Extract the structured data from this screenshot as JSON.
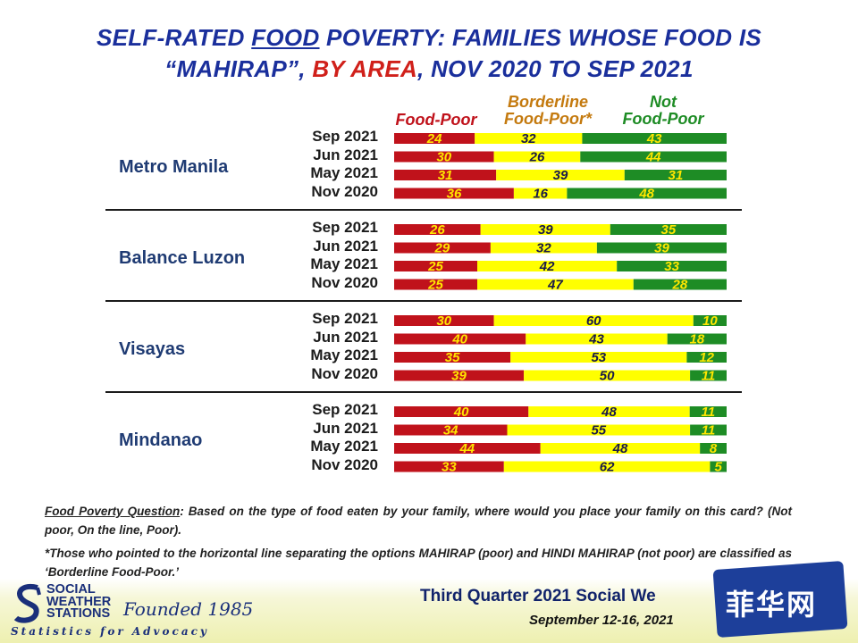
{
  "title": {
    "line1_a": "SELF-RATED ",
    "line1_b": "FOOD",
    "line1_c": " POVERTY: FAMILIES WHOSE FOOD IS",
    "line2_a": "“MAHIRAP”, ",
    "line2_b": "BY AREA",
    "line2_c": ", NOV 2020 TO SEP 2021"
  },
  "legend": {
    "food_poor": "Food-Poor",
    "borderline_1": "Borderline",
    "borderline_2": "Food-Poor*",
    "not_1": "Not",
    "not_2": "Food-Poor"
  },
  "colors": {
    "food_poor": "#c0121b",
    "borderline": "#ffff00",
    "not_food_poor": "#1e8c25",
    "title_blue": "#1a2f9c"
  },
  "chart_data": {
    "type": "bar",
    "orientation": "horizontal-stacked-100",
    "series_names": [
      "Food-Poor",
      "Borderline Food-Poor*",
      "Not Food-Poor"
    ],
    "groups": [
      {
        "area": "Metro Manila",
        "rows": [
          {
            "period": "Sep 2021",
            "values": [
              24,
              32,
              43
            ]
          },
          {
            "period": "Jun 2021",
            "values": [
              30,
              26,
              44
            ]
          },
          {
            "period": "May 2021",
            "values": [
              31,
              39,
              31
            ]
          },
          {
            "period": "Nov 2020",
            "values": [
              36,
              16,
              48
            ]
          }
        ]
      },
      {
        "area": "Balance Luzon",
        "rows": [
          {
            "period": "Sep 2021",
            "values": [
              26,
              39,
              35
            ]
          },
          {
            "period": "Jun 2021",
            "values": [
              29,
              32,
              39
            ]
          },
          {
            "period": "May 2021",
            "values": [
              25,
              42,
              33
            ]
          },
          {
            "period": "Nov 2020",
            "values": [
              25,
              47,
              28
            ]
          }
        ]
      },
      {
        "area": "Visayas",
        "rows": [
          {
            "period": "Sep 2021",
            "values": [
              30,
              60,
              10
            ]
          },
          {
            "period": "Jun 2021",
            "values": [
              40,
              43,
              18
            ]
          },
          {
            "period": "May 2021",
            "values": [
              35,
              53,
              12
            ]
          },
          {
            "period": "Nov 2020",
            "values": [
              39,
              50,
              11
            ]
          }
        ]
      },
      {
        "area": "Mindanao",
        "rows": [
          {
            "period": "Sep 2021",
            "values": [
              40,
              48,
              11
            ]
          },
          {
            "period": "Jun 2021",
            "values": [
              34,
              55,
              11
            ]
          },
          {
            "period": "May 2021",
            "values": [
              44,
              48,
              8
            ]
          },
          {
            "period": "Nov 2020",
            "values": [
              33,
              62,
              5
            ]
          }
        ]
      }
    ]
  },
  "notes": {
    "q_label": "Food Poverty Question",
    "q_text": ":  Based on the type of food eaten by your family, where would you place your family on this card?  (Not poor, On the line, Poor).",
    "borderline_note": "*Those who pointed to the horizontal line separating the options MAHIRAP (poor) and HINDI MAHIRAP (not poor) are classified as ‘Borderline Food-Poor.’"
  },
  "footer": {
    "logo_line1": "SOCIAL",
    "logo_line2": "WEATHER",
    "logo_line3": "STATIONS",
    "founded": "Founded 1985",
    "tagline": "Statistics for Advocacy",
    "survey": "Third Quarter 2021 Social We",
    "dates": "September 12-16, 2021",
    "watermark": "菲华网"
  }
}
